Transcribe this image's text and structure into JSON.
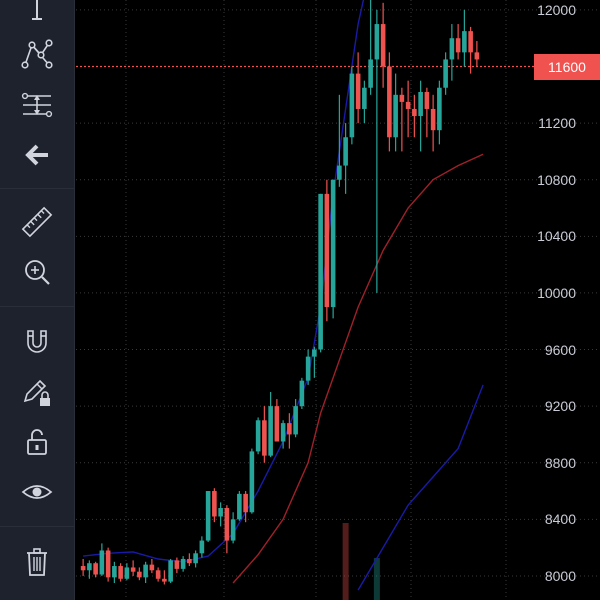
{
  "toolbar": {
    "tools": [
      {
        "name": "cursor-tool",
        "icon": "crosshair-line-icon"
      },
      {
        "name": "pattern-tool",
        "icon": "pattern-nodes-icon"
      },
      {
        "name": "fib-tool",
        "icon": "fib-retracement-icon"
      },
      {
        "name": "back-tool",
        "icon": "arrow-left-icon"
      },
      {
        "name": "measure-tool",
        "icon": "ruler-icon"
      },
      {
        "name": "zoom-tool",
        "icon": "zoom-in-icon"
      },
      {
        "name": "magnet-tool",
        "icon": "magnet-icon"
      },
      {
        "name": "lock-drawing-tool",
        "icon": "pencil-lock-icon"
      },
      {
        "name": "lock-all-tool",
        "icon": "unlock-icon"
      },
      {
        "name": "visibility-tool",
        "icon": "eye-icon"
      },
      {
        "name": "delete-tool",
        "icon": "trash-icon"
      }
    ]
  },
  "price_axis": {
    "labels": [
      "12000",
      "11600",
      "11200",
      "10800",
      "10400",
      "10000",
      "9600",
      "9200",
      "8800",
      "8400",
      "8000"
    ],
    "current_price": "11600"
  },
  "colors": {
    "background": "#000000",
    "toolbar": "#1e222d",
    "up": "#26a69a",
    "down": "#ef5350",
    "current_line": "#f0524f",
    "upper_band": "#1a1aa8",
    "middle_band": "#a0202a",
    "grid": "#3a3a3a",
    "axis_text": "#c9ccd6",
    "icon": "#d1d4dc"
  },
  "chart_data": {
    "type": "candlestick",
    "series": [
      {
        "name": "",
        "ohlc": [
          [
            8070,
            8120,
            8000,
            8040
          ],
          [
            8040,
            8110,
            7980,
            8090
          ],
          [
            8090,
            8100,
            7990,
            8010
          ],
          [
            8010,
            8230,
            8000,
            8180
          ],
          [
            8180,
            8200,
            7960,
            7990
          ],
          [
            7990,
            8100,
            7950,
            8070
          ],
          [
            8070,
            8090,
            7960,
            7980
          ],
          [
            7980,
            8090,
            7970,
            8060
          ],
          [
            8060,
            8110,
            8000,
            8030
          ],
          [
            8030,
            8060,
            7970,
            7990
          ],
          [
            7990,
            8100,
            7950,
            8080
          ],
          [
            8080,
            8120,
            8020,
            8040
          ],
          [
            8040,
            8060,
            7960,
            7980
          ],
          [
            7980,
            8040,
            7940,
            7960
          ],
          [
            7960,
            8120,
            7950,
            8110
          ],
          [
            8110,
            8130,
            8020,
            8050
          ],
          [
            8050,
            8140,
            8030,
            8120
          ],
          [
            8120,
            8160,
            8070,
            8090
          ],
          [
            8090,
            8180,
            8060,
            8160
          ],
          [
            8160,
            8280,
            8130,
            8250
          ],
          [
            8250,
            8600,
            8240,
            8600
          ],
          [
            8600,
            8620,
            8380,
            8420
          ],
          [
            8420,
            8520,
            8350,
            8480
          ],
          [
            8480,
            8500,
            8160,
            8250
          ],
          [
            8250,
            8450,
            8230,
            8400
          ],
          [
            8400,
            8600,
            8390,
            8580
          ],
          [
            8580,
            8600,
            8380,
            8450
          ],
          [
            8450,
            8900,
            8440,
            8880
          ],
          [
            8880,
            9120,
            8860,
            9100
          ],
          [
            9100,
            9200,
            8800,
            8850
          ],
          [
            8850,
            9300,
            8840,
            9200
          ],
          [
            9200,
            9250,
            8950,
            8950
          ],
          [
            8950,
            9100,
            8900,
            9080
          ],
          [
            9080,
            9150,
            8900,
            9000
          ],
          [
            9000,
            9250,
            8980,
            9200
          ],
          [
            9200,
            9400,
            9180,
            9380
          ],
          [
            9380,
            9600,
            9350,
            9550
          ],
          [
            9550,
            9620,
            9400,
            9600
          ],
          [
            9600,
            10700,
            9580,
            10700
          ],
          [
            10700,
            10800,
            9800,
            9900
          ],
          [
            9900,
            10800,
            9820,
            10800
          ],
          [
            10800,
            11400,
            10750,
            10900
          ],
          [
            10900,
            11200,
            10700,
            11100
          ],
          [
            11100,
            11600,
            11050,
            11550
          ],
          [
            11550,
            11700,
            11200,
            11300
          ],
          [
            11300,
            11500,
            11200,
            11450
          ],
          [
            11450,
            12100,
            11400,
            11650
          ],
          [
            11650,
            12000,
            10000,
            11900
          ],
          [
            11900,
            12050,
            11450,
            11600
          ],
          [
            11600,
            11700,
            11000,
            11100
          ],
          [
            11100,
            11550,
            11000,
            11400
          ],
          [
            11400,
            11450,
            11000,
            11350
          ],
          [
            11350,
            11500,
            11100,
            11300
          ],
          [
            11300,
            11400,
            11100,
            11250
          ],
          [
            11250,
            11500,
            11000,
            11420
          ],
          [
            11420,
            11450,
            11100,
            11300
          ],
          [
            11300,
            11400,
            11000,
            11150
          ],
          [
            11150,
            11500,
            11050,
            11450
          ],
          [
            11450,
            11700,
            11400,
            11650
          ],
          [
            11650,
            11900,
            11500,
            11800
          ],
          [
            11800,
            11900,
            11650,
            11700
          ],
          [
            11700,
            12000,
            11600,
            11850
          ],
          [
            11850,
            11880,
            11550,
            11700
          ],
          [
            11700,
            11780,
            11600,
            11650
          ]
        ]
      }
    ],
    "ylim": [
      7830,
      12070
    ],
    "y_ticks": [
      8000,
      8400,
      8800,
      9200,
      9600,
      10000,
      10400,
      10800,
      11200,
      11600,
      12000
    ],
    "current_price": 11600,
    "grid": true,
    "volume_bars": [
      {
        "index": 42,
        "value": 0.55,
        "color": "#ef5350"
      },
      {
        "index": 47,
        "value": 0.3,
        "color": "#26a69a"
      }
    ],
    "bollinger": {
      "upper": [
        [
          0,
          8140
        ],
        [
          4,
          8160
        ],
        [
          8,
          8170
        ],
        [
          12,
          8120
        ],
        [
          16,
          8100
        ],
        [
          20,
          8140
        ],
        [
          24,
          8300
        ],
        [
          28,
          8600
        ],
        [
          32,
          8950
        ],
        [
          36,
          9400
        ],
        [
          38,
          9900
        ],
        [
          40,
          10700
        ],
        [
          42,
          11300
        ],
        [
          44,
          11900
        ],
        [
          46,
          12300
        ],
        [
          48,
          12500
        ]
      ],
      "middle": [
        [
          24,
          7950
        ],
        [
          28,
          8150
        ],
        [
          32,
          8400
        ],
        [
          36,
          8800
        ],
        [
          38,
          9150
        ],
        [
          40,
          9400
        ],
        [
          44,
          9900
        ],
        [
          48,
          10300
        ],
        [
          52,
          10600
        ],
        [
          56,
          10800
        ],
        [
          60,
          10900
        ],
        [
          64,
          10980
        ]
      ],
      "lower": [
        [
          44,
          7900
        ],
        [
          48,
          8200
        ],
        [
          52,
          8500
        ],
        [
          56,
          8700
        ],
        [
          60,
          8900
        ],
        [
          64,
          9350
        ]
      ]
    }
  }
}
